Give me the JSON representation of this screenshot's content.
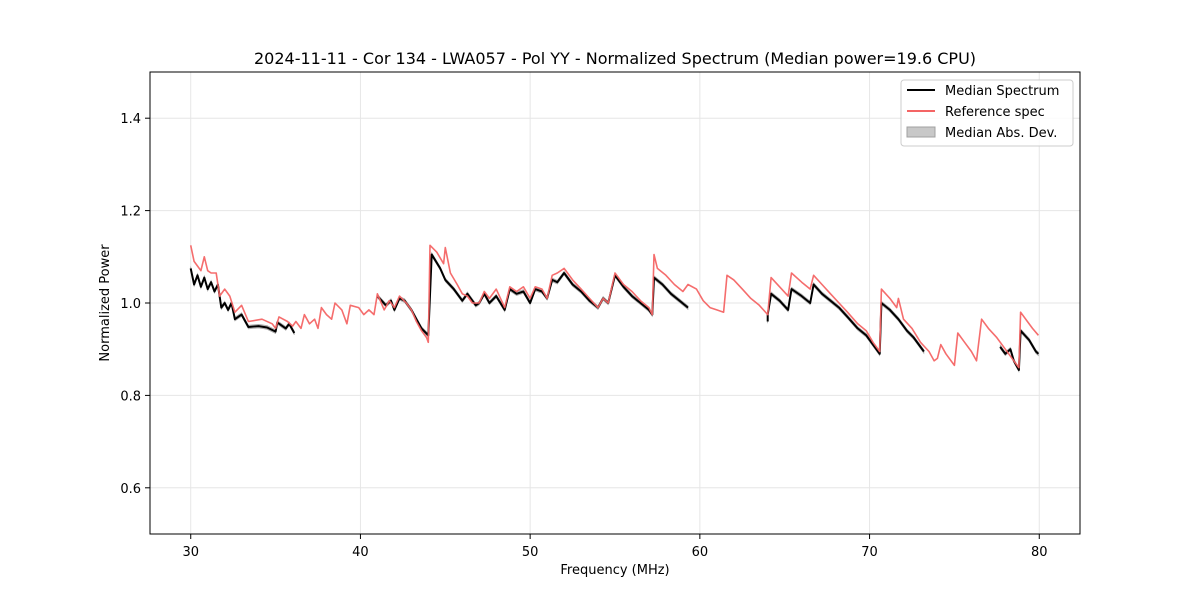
{
  "chart_data": {
    "type": "line",
    "title": "2024-11-11 - Cor 134 - LWA057 - Pol YY - Normalized Spectrum (Median power=19.6 CPU)",
    "xlabel": "Frequency (MHz)",
    "ylabel": "Normalized Power",
    "xlim": [
      27.6,
      82.4
    ],
    "ylim": [
      0.5,
      1.5
    ],
    "xticks": [
      30,
      40,
      50,
      60,
      70,
      80
    ],
    "yticks": [
      0.6,
      0.8,
      1.0,
      1.2,
      1.4
    ],
    "xtick_labels": [
      "30",
      "40",
      "50",
      "60",
      "70",
      "80"
    ],
    "ytick_labels": [
      "0.6",
      "0.8",
      "1.0",
      "1.2",
      "1.4"
    ],
    "grid": true,
    "legend_position": "top-right",
    "legend": [
      "Median Spectrum",
      "Reference spec",
      "Median Abs. Dev."
    ],
    "colors": {
      "median": "#000000",
      "reference": "#f46565",
      "mad_fill": "#c8c8c8",
      "mad_edge": "#a0a0a0",
      "grid": "#e6e6e6"
    },
    "series": [
      {
        "name": "Median Spectrum",
        "segments": [
          [
            [
              30.0,
              1.075
            ],
            [
              30.2,
              1.04
            ],
            [
              30.4,
              1.06
            ],
            [
              30.6,
              1.035
            ],
            [
              30.8,
              1.055
            ],
            [
              31.0,
              1.03
            ],
            [
              31.2,
              1.045
            ],
            [
              31.4,
              1.025
            ],
            [
              31.6,
              1.04
            ],
            [
              31.8,
              0.99
            ],
            [
              32.0,
              1.0
            ],
            [
              32.2,
              0.985
            ],
            [
              32.4,
              1.0
            ],
            [
              32.6,
              0.965
            ],
            [
              33.0,
              0.975
            ],
            [
              33.4,
              0.948
            ],
            [
              34.0,
              0.95
            ],
            [
              34.5,
              0.947
            ],
            [
              35.0,
              0.938
            ],
            [
              35.1,
              0.958
            ],
            [
              35.6,
              0.945
            ],
            [
              35.8,
              0.955
            ],
            [
              36.1,
              0.935
            ]
          ],
          [
            [
              41.0,
              1.015
            ],
            [
              41.5,
              0.995
            ],
            [
              41.8,
              1.005
            ],
            [
              42.0,
              0.985
            ],
            [
              42.3,
              1.01
            ],
            [
              42.6,
              1.005
            ],
            [
              43.0,
              0.985
            ],
            [
              43.3,
              0.965
            ],
            [
              43.6,
              0.945
            ],
            [
              44.0,
              0.93
            ],
            [
              44.2,
              1.105
            ],
            [
              44.7,
              1.075
            ],
            [
              45.0,
              1.05
            ],
            [
              45.5,
              1.03
            ],
            [
              46.0,
              1.005
            ],
            [
              46.3,
              1.02
            ],
            [
              46.6,
              1.005
            ],
            [
              46.8,
              0.995
            ],
            [
              47.0,
              1.0
            ],
            [
              47.3,
              1.02
            ],
            [
              47.6,
              1.0
            ],
            [
              48.0,
              1.015
            ],
            [
              48.5,
              0.985
            ],
            [
              48.8,
              1.03
            ],
            [
              49.2,
              1.02
            ],
            [
              49.6,
              1.025
            ],
            [
              50.0,
              1.0
            ],
            [
              50.3,
              1.03
            ],
            [
              50.7,
              1.025
            ],
            [
              51.0,
              1.01
            ],
            [
              51.3,
              1.05
            ],
            [
              51.6,
              1.045
            ],
            [
              52.0,
              1.065
            ],
            [
              52.5,
              1.04
            ],
            [
              53.0,
              1.025
            ],
            [
              53.5,
              1.005
            ],
            [
              54.0,
              0.99
            ],
            [
              54.3,
              1.01
            ],
            [
              54.6,
              1.0
            ],
            [
              55.0,
              1.06
            ],
            [
              55.5,
              1.035
            ],
            [
              56.0,
              1.015
            ],
            [
              56.5,
              1.0
            ],
            [
              57.0,
              0.985
            ],
            [
              57.2,
              0.975
            ],
            [
              57.3,
              1.055
            ],
            [
              57.8,
              1.04
            ],
            [
              58.3,
              1.02
            ],
            [
              58.8,
              1.005
            ],
            [
              59.3,
              0.99
            ]
          ],
          [
            [
              64.0,
              0.96
            ],
            [
              64.0,
              0.975
            ],
            [
              64.2,
              1.02
            ],
            [
              64.7,
              1.005
            ],
            [
              65.2,
              0.985
            ],
            [
              65.4,
              1.03
            ],
            [
              66.0,
              1.015
            ],
            [
              66.5,
              1.0
            ],
            [
              66.7,
              1.04
            ],
            [
              67.2,
              1.02
            ],
            [
              67.7,
              1.005
            ],
            [
              68.2,
              0.99
            ],
            [
              68.7,
              0.97
            ],
            [
              69.3,
              0.945
            ],
            [
              69.8,
              0.93
            ],
            [
              70.2,
              0.91
            ],
            [
              70.6,
              0.89
            ],
            [
              70.7,
              1.0
            ],
            [
              71.2,
              0.985
            ],
            [
              71.7,
              0.965
            ],
            [
              72.2,
              0.94
            ],
            [
              72.6,
              0.925
            ],
            [
              73.0,
              0.905
            ],
            [
              73.2,
              0.895
            ]
          ],
          [
            [
              77.7,
              0.905
            ],
            [
              78.0,
              0.89
            ],
            [
              78.3,
              0.9
            ],
            [
              78.5,
              0.875
            ],
            [
              78.8,
              0.855
            ],
            [
              78.9,
              0.94
            ],
            [
              79.4,
              0.92
            ],
            [
              79.8,
              0.895
            ],
            [
              79.95,
              0.89
            ]
          ]
        ]
      },
      {
        "name": "Reference spec",
        "segments": [
          [
            [
              30.0,
              1.125
            ],
            [
              30.2,
              1.09
            ],
            [
              30.4,
              1.08
            ],
            [
              30.6,
              1.07
            ],
            [
              30.8,
              1.1
            ],
            [
              31.0,
              1.07
            ],
            [
              31.2,
              1.065
            ],
            [
              31.5,
              1.065
            ],
            [
              31.7,
              1.015
            ],
            [
              32.0,
              1.03
            ],
            [
              32.3,
              1.015
            ],
            [
              32.6,
              0.98
            ],
            [
              33.0,
              0.995
            ],
            [
              33.4,
              0.96
            ],
            [
              34.2,
              0.965
            ],
            [
              34.8,
              0.955
            ],
            [
              35.0,
              0.945
            ],
            [
              35.2,
              0.97
            ],
            [
              35.7,
              0.96
            ],
            [
              36.0,
              0.95
            ],
            [
              36.2,
              0.96
            ],
            [
              36.5,
              0.945
            ],
            [
              36.7,
              0.975
            ],
            [
              37.0,
              0.955
            ],
            [
              37.3,
              0.965
            ],
            [
              37.5,
              0.945
            ],
            [
              37.7,
              0.99
            ],
            [
              38.0,
              0.975
            ],
            [
              38.3,
              0.965
            ],
            [
              38.5,
              1.0
            ],
            [
              38.9,
              0.985
            ],
            [
              39.2,
              0.955
            ],
            [
              39.4,
              0.995
            ],
            [
              39.9,
              0.99
            ],
            [
              40.2,
              0.975
            ],
            [
              40.5,
              0.985
            ],
            [
              40.8,
              0.975
            ],
            [
              41.0,
              1.02
            ],
            [
              41.4,
              0.985
            ],
            [
              41.7,
              1.005
            ],
            [
              42.0,
              0.99
            ],
            [
              42.3,
              1.015
            ],
            [
              42.7,
              1.0
            ],
            [
              43.0,
              0.985
            ],
            [
              43.3,
              0.96
            ],
            [
              43.6,
              0.94
            ],
            [
              43.9,
              0.925
            ],
            [
              44.0,
              0.915
            ],
            [
              44.1,
              1.125
            ],
            [
              44.5,
              1.11
            ],
            [
              44.9,
              1.085
            ],
            [
              45.0,
              1.12
            ],
            [
              45.3,
              1.065
            ],
            [
              45.7,
              1.04
            ],
            [
              46.0,
              1.02
            ],
            [
              46.3,
              1.015
            ],
            [
              46.6,
              1.0
            ],
            [
              47.0,
              1.0
            ],
            [
              47.3,
              1.025
            ],
            [
              47.6,
              1.01
            ],
            [
              48.0,
              1.03
            ],
            [
              48.5,
              0.99
            ],
            [
              48.8,
              1.035
            ],
            [
              49.2,
              1.025
            ],
            [
              49.6,
              1.035
            ],
            [
              50.0,
              1.01
            ],
            [
              50.3,
              1.035
            ],
            [
              50.7,
              1.03
            ],
            [
              51.0,
              1.01
            ],
            [
              51.3,
              1.06
            ],
            [
              51.6,
              1.065
            ],
            [
              52.0,
              1.075
            ],
            [
              52.5,
              1.05
            ],
            [
              53.0,
              1.03
            ],
            [
              53.5,
              1.01
            ],
            [
              54.0,
              0.99
            ],
            [
              54.3,
              1.01
            ],
            [
              54.6,
              1.0
            ],
            [
              55.0,
              1.065
            ],
            [
              55.5,
              1.04
            ],
            [
              56.0,
              1.025
            ],
            [
              56.5,
              1.005
            ],
            [
              57.0,
              0.99
            ],
            [
              57.2,
              0.975
            ],
            [
              57.3,
              1.105
            ],
            [
              57.5,
              1.075
            ],
            [
              58.0,
              1.06
            ],
            [
              58.5,
              1.04
            ],
            [
              59.0,
              1.025
            ],
            [
              59.3,
              1.04
            ],
            [
              59.8,
              1.03
            ],
            [
              60.2,
              1.005
            ],
            [
              60.6,
              0.99
            ],
            [
              61.0,
              0.985
            ],
            [
              61.4,
              0.98
            ],
            [
              61.6,
              1.06
            ],
            [
              62.0,
              1.05
            ],
            [
              62.5,
              1.03
            ],
            [
              63.0,
              1.01
            ],
            [
              63.5,
              0.995
            ],
            [
              64.0,
              0.975
            ],
            [
              64.2,
              1.055
            ],
            [
              64.7,
              1.035
            ],
            [
              65.2,
              1.015
            ],
            [
              65.4,
              1.065
            ],
            [
              66.0,
              1.045
            ],
            [
              66.5,
              1.03
            ],
            [
              66.7,
              1.06
            ],
            [
              67.2,
              1.04
            ],
            [
              67.7,
              1.02
            ],
            [
              68.2,
              1.0
            ],
            [
              68.7,
              0.98
            ],
            [
              69.3,
              0.955
            ],
            [
              69.8,
              0.94
            ],
            [
              70.2,
              0.915
            ],
            [
              70.6,
              0.895
            ],
            [
              70.7,
              1.03
            ],
            [
              71.2,
              1.01
            ],
            [
              71.6,
              0.99
            ],
            [
              71.7,
              1.01
            ],
            [
              72.0,
              0.965
            ],
            [
              72.5,
              0.945
            ],
            [
              73.0,
              0.915
            ],
            [
              73.5,
              0.895
            ],
            [
              73.8,
              0.875
            ],
            [
              74.0,
              0.88
            ],
            [
              74.2,
              0.91
            ],
            [
              74.5,
              0.89
            ],
            [
              75.0,
              0.865
            ],
            [
              75.2,
              0.935
            ],
            [
              75.6,
              0.915
            ],
            [
              76.0,
              0.895
            ],
            [
              76.3,
              0.875
            ],
            [
              76.6,
              0.965
            ],
            [
              77.0,
              0.945
            ],
            [
              77.5,
              0.925
            ],
            [
              78.0,
              0.9
            ],
            [
              78.5,
              0.875
            ],
            [
              78.8,
              0.86
            ],
            [
              78.9,
              0.98
            ],
            [
              79.3,
              0.96
            ],
            [
              79.6,
              0.945
            ],
            [
              79.95,
              0.93
            ]
          ]
        ]
      }
    ]
  }
}
